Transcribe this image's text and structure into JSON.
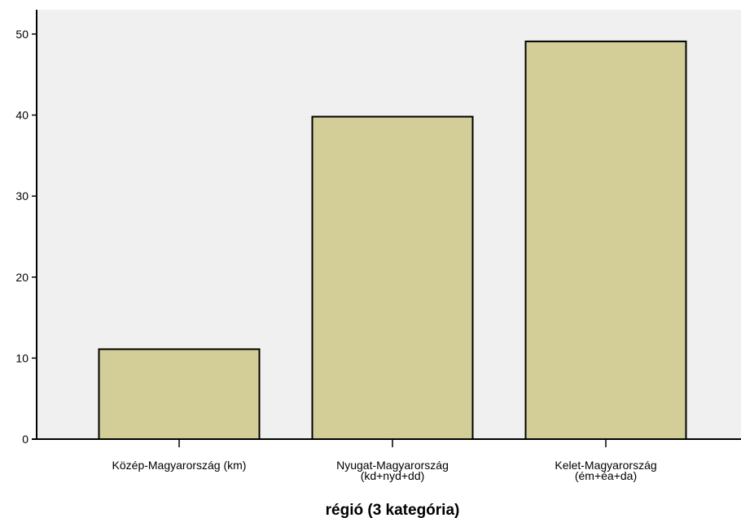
{
  "chart_data": {
    "type": "bar",
    "categories": [
      [
        "Közép-Magyarország (km)"
      ],
      [
        "Nyugat-Magyarország",
        "(kd+nyd+dd)"
      ],
      [
        "Kelet-Magyarország",
        "(ém+éa+da)"
      ]
    ],
    "values": [
      11.1,
      39.8,
      49.1
    ],
    "ylim": [
      0,
      53
    ],
    "yticks": [
      0,
      10,
      20,
      30,
      40,
      50
    ],
    "xlabel": "régió (3 kategória)",
    "ylabel": "",
    "title": "",
    "grid": false,
    "colors": {
      "plot_background": "#f0f0f0",
      "bar_fill": "#d3ce98",
      "bar_stroke": "#000000"
    }
  }
}
